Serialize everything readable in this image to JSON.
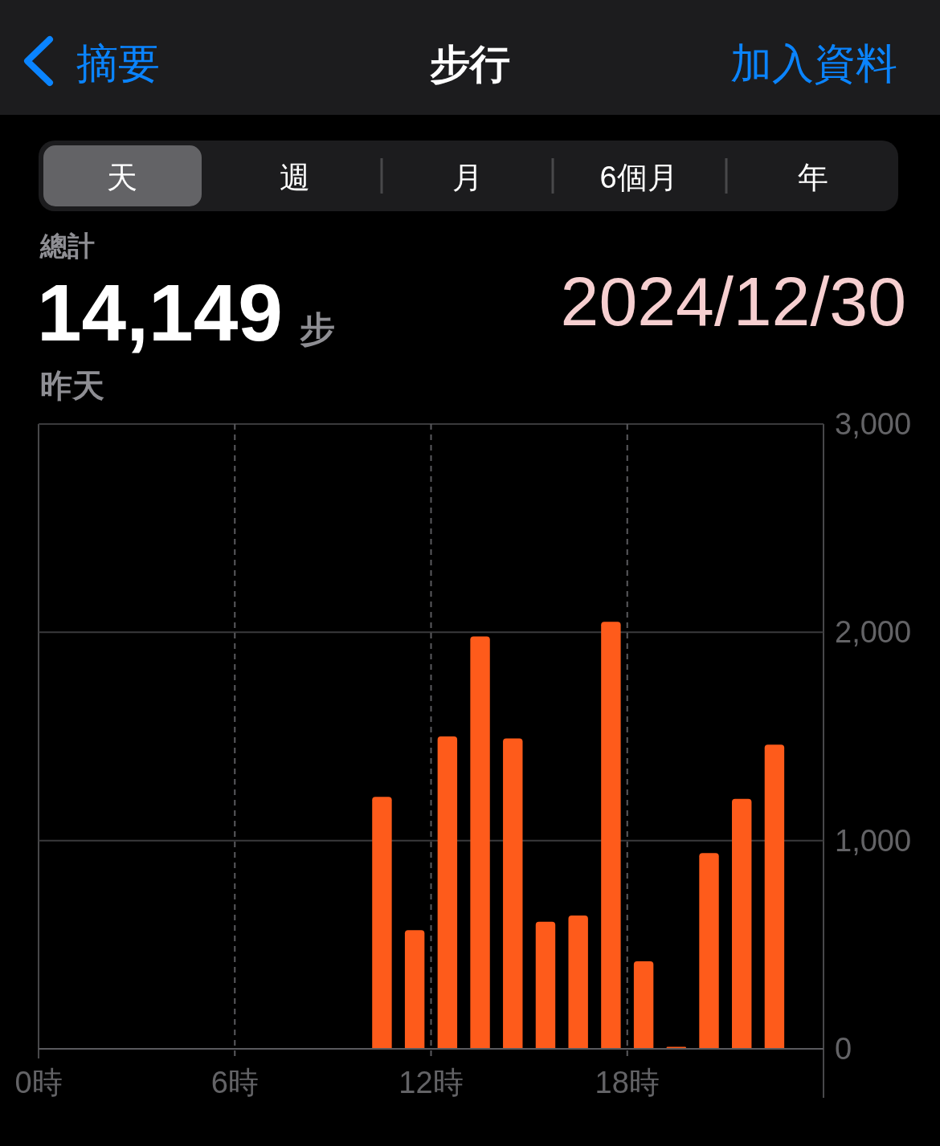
{
  "chart_data": {
    "type": "bar",
    "title": "步行",
    "annotations": [
      "摘要",
      "加入資料",
      "天",
      "週",
      "月",
      "6個月",
      "年",
      "總計",
      "14,149",
      "步",
      "昨天",
      "2024/12/30"
    ],
    "x": [
      10.5,
      11.5,
      12.5,
      13.5,
      14.5,
      15.5,
      16.5,
      17.5,
      18.5,
      19.5,
      20.5,
      21.5,
      22.5
    ],
    "values": [
      1210,
      570,
      1500,
      1980,
      1490,
      610,
      640,
      2050,
      420,
      10,
      940,
      1200,
      1460
    ],
    "color": "#fe5b1b",
    "xlim": [
      0,
      24
    ],
    "xticks": [
      {
        "value": 0,
        "label": "0時"
      },
      {
        "value": 6,
        "label": "6時"
      },
      {
        "value": 12,
        "label": "12時"
      },
      {
        "value": 18,
        "label": "18時"
      }
    ],
    "ylim": [
      0,
      3000
    ],
    "yticks": [
      0,
      {
        "value": 1000,
        "label": "1,000"
      },
      {
        "value": 2000,
        "label": "2,000"
      },
      {
        "value": 3000,
        "label": "3,000"
      }
    ],
    "grid": true
  }
}
